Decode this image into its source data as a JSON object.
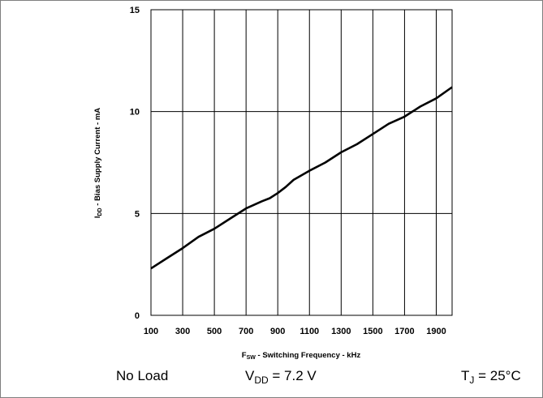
{
  "chart_data": {
    "type": "line",
    "xlabel_main": "F",
    "xlabel_sub": "SW",
    "xlabel_rest": " - Switching Frequency - kHz",
    "ylabel_main": "I",
    "ylabel_sub": "DD",
    "ylabel_rest": " - Bias Supply Current - mA",
    "xlim": [
      100,
      2000
    ],
    "ylim": [
      0,
      15
    ],
    "xticks": [
      "100",
      "300",
      "500",
      "700",
      "900",
      "1100",
      "1300",
      "1500",
      "1700",
      "1900"
    ],
    "xtick_values": [
      100,
      300,
      500,
      700,
      900,
      1100,
      1300,
      1500,
      1700,
      1900
    ],
    "yticks": [
      "0",
      "5",
      "10",
      "15"
    ],
    "ytick_values": [
      0,
      5,
      10,
      15
    ],
    "x_grid_values": [
      100,
      300,
      500,
      700,
      900,
      1100,
      1300,
      1500,
      1700,
      1900,
      2000
    ],
    "y_grid_values": [
      0,
      5,
      10,
      15
    ],
    "grid": true,
    "series": [
      {
        "x": [
          100,
          200,
          300,
          400,
          500,
          600,
          700,
          800,
          850,
          900,
          950,
          1000,
          1100,
          1200,
          1300,
          1400,
          1500,
          1600,
          1700,
          1800,
          1900,
          2000
        ],
        "y": [
          2.3,
          2.8,
          3.3,
          3.85,
          4.25,
          4.75,
          5.25,
          5.6,
          5.75,
          6.0,
          6.3,
          6.65,
          7.1,
          7.5,
          8.0,
          8.4,
          8.9,
          9.4,
          9.75,
          10.25,
          10.65,
          11.2
        ],
        "color": "#000000"
      }
    ]
  },
  "conditions": {
    "load": "No Load",
    "vdd_main": "V",
    "vdd_sub": "DD",
    "vdd_rest": " = 7.2 V",
    "tj_main": "T",
    "tj_sub": "J",
    "tj_rest": " = 25°C"
  }
}
